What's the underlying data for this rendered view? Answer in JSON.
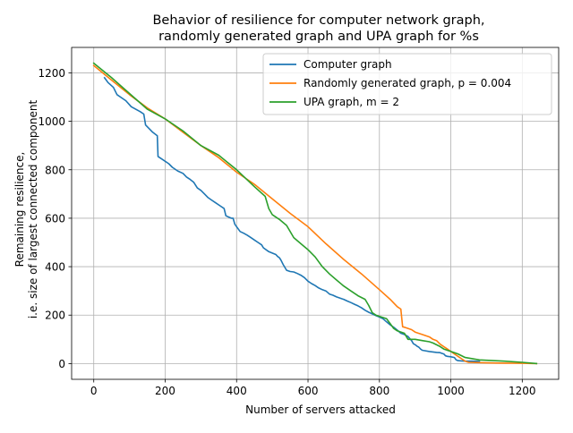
{
  "chart_data": {
    "type": "line",
    "title_lines": [
      "Behavior of resilience for computer network graph,",
      "randomly generated graph and UPA graph for %s"
    ],
    "xlabel": "Number of servers attacked",
    "ylabel_lines": [
      "Remaining resilience,",
      "i.e. size of largest connected component"
    ],
    "xlim": [
      -62,
      1302
    ],
    "ylim": [
      -65,
      1305
    ],
    "xticks": [
      0,
      200,
      400,
      600,
      800,
      1000,
      1200
    ],
    "yticks": [
      0,
      200,
      400,
      600,
      800,
      1000,
      1200
    ],
    "grid": true,
    "legend_position": "top-right",
    "series": [
      {
        "name": "Computer graph",
        "color": "#1f77b4",
        "points": [
          [
            30,
            1180
          ],
          [
            40,
            1160
          ],
          [
            55,
            1140
          ],
          [
            65,
            1110
          ],
          [
            75,
            1100
          ],
          [
            90,
            1085
          ],
          [
            105,
            1060
          ],
          [
            130,
            1040
          ],
          [
            140,
            1030
          ],
          [
            145,
            985
          ],
          [
            155,
            970
          ],
          [
            165,
            955
          ],
          [
            178,
            940
          ],
          [
            180,
            855
          ],
          [
            195,
            840
          ],
          [
            210,
            825
          ],
          [
            220,
            810
          ],
          [
            235,
            795
          ],
          [
            250,
            785
          ],
          [
            260,
            770
          ],
          [
            270,
            760
          ],
          [
            280,
            748
          ],
          [
            290,
            725
          ],
          [
            300,
            715
          ],
          [
            310,
            700
          ],
          [
            320,
            685
          ],
          [
            330,
            675
          ],
          [
            340,
            665
          ],
          [
            355,
            650
          ],
          [
            365,
            640
          ],
          [
            370,
            610
          ],
          [
            385,
            600
          ],
          [
            390,
            600
          ],
          [
            395,
            575
          ],
          [
            410,
            545
          ],
          [
            420,
            538
          ],
          [
            430,
            530
          ],
          [
            440,
            520
          ],
          [
            450,
            510
          ],
          [
            460,
            500
          ],
          [
            470,
            490
          ],
          [
            475,
            478
          ],
          [
            490,
            462
          ],
          [
            500,
            456
          ],
          [
            510,
            450
          ],
          [
            515,
            442
          ],
          [
            520,
            437
          ],
          [
            525,
            425
          ],
          [
            530,
            410
          ],
          [
            540,
            385
          ],
          [
            550,
            380
          ],
          [
            560,
            378
          ],
          [
            570,
            372
          ],
          [
            580,
            365
          ],
          [
            590,
            355
          ],
          [
            600,
            340
          ],
          [
            610,
            330
          ],
          [
            620,
            322
          ],
          [
            630,
            312
          ],
          [
            640,
            305
          ],
          [
            650,
            300
          ],
          [
            660,
            287
          ],
          [
            670,
            282
          ],
          [
            680,
            275
          ],
          [
            690,
            270
          ],
          [
            700,
            265
          ],
          [
            710,
            258
          ],
          [
            720,
            252
          ],
          [
            730,
            245
          ],
          [
            740,
            238
          ],
          [
            750,
            230
          ],
          [
            760,
            220
          ],
          [
            770,
            212
          ],
          [
            780,
            205
          ],
          [
            790,
            198
          ],
          [
            800,
            192
          ],
          [
            810,
            185
          ],
          [
            820,
            172
          ],
          [
            830,
            160
          ],
          [
            840,
            150
          ],
          [
            850,
            138
          ],
          [
            860,
            125
          ],
          [
            870,
            120
          ],
          [
            880,
            112
          ],
          [
            890,
            95
          ],
          [
            895,
            82
          ],
          [
            900,
            78
          ],
          [
            905,
            72
          ],
          [
            910,
            68
          ],
          [
            915,
            60
          ],
          [
            920,
            55
          ],
          [
            940,
            50
          ],
          [
            960,
            46
          ],
          [
            970,
            45
          ],
          [
            975,
            42
          ],
          [
            980,
            40
          ],
          [
            985,
            32
          ],
          [
            990,
            30
          ],
          [
            1000,
            28
          ],
          [
            1010,
            25
          ],
          [
            1015,
            15
          ],
          [
            1020,
            12
          ],
          [
            1030,
            11
          ],
          [
            1040,
            10
          ],
          [
            1060,
            10
          ],
          [
            1080,
            9
          ]
        ]
      },
      {
        "name": "Randomly generated graph, p = 0.004",
        "color": "#ff7f0e",
        "points": [
          [
            0,
            1230
          ],
          [
            50,
            1170
          ],
          [
            100,
            1110
          ],
          [
            150,
            1055
          ],
          [
            200,
            1010
          ],
          [
            250,
            955
          ],
          [
            300,
            900
          ],
          [
            350,
            850
          ],
          [
            400,
            790
          ],
          [
            450,
            740
          ],
          [
            500,
            680
          ],
          [
            550,
            620
          ],
          [
            600,
            565
          ],
          [
            650,
            495
          ],
          [
            700,
            430
          ],
          [
            750,
            370
          ],
          [
            800,
            305
          ],
          [
            830,
            265
          ],
          [
            850,
            235
          ],
          [
            860,
            225
          ],
          [
            865,
            152
          ],
          [
            870,
            150
          ],
          [
            890,
            140
          ],
          [
            900,
            130
          ],
          [
            920,
            120
          ],
          [
            940,
            110
          ],
          [
            950,
            100
          ],
          [
            960,
            95
          ],
          [
            970,
            80
          ],
          [
            980,
            70
          ],
          [
            990,
            60
          ],
          [
            1000,
            50
          ],
          [
            1010,
            40
          ],
          [
            1020,
            30
          ],
          [
            1030,
            20
          ],
          [
            1040,
            10
          ],
          [
            1050,
            5
          ],
          [
            1100,
            3
          ],
          [
            1150,
            2
          ],
          [
            1200,
            1
          ],
          [
            1240,
            0
          ]
        ]
      },
      {
        "name": "UPA graph, m = 2",
        "color": "#2ca02c",
        "points": [
          [
            0,
            1240
          ],
          [
            50,
            1180
          ],
          [
            100,
            1115
          ],
          [
            150,
            1050
          ],
          [
            200,
            1010
          ],
          [
            250,
            960
          ],
          [
            300,
            900
          ],
          [
            350,
            860
          ],
          [
            400,
            800
          ],
          [
            450,
            730
          ],
          [
            480,
            690
          ],
          [
            490,
            640
          ],
          [
            500,
            615
          ],
          [
            520,
            595
          ],
          [
            540,
            570
          ],
          [
            560,
            520
          ],
          [
            580,
            495
          ],
          [
            600,
            470
          ],
          [
            620,
            440
          ],
          [
            640,
            400
          ],
          [
            660,
            370
          ],
          [
            680,
            345
          ],
          [
            700,
            320
          ],
          [
            720,
            300
          ],
          [
            740,
            280
          ],
          [
            760,
            265
          ],
          [
            770,
            240
          ],
          [
            780,
            210
          ],
          [
            790,
            200
          ],
          [
            800,
            195
          ],
          [
            820,
            185
          ],
          [
            830,
            165
          ],
          [
            840,
            145
          ],
          [
            850,
            135
          ],
          [
            870,
            125
          ],
          [
            880,
            100
          ],
          [
            900,
            100
          ],
          [
            920,
            95
          ],
          [
            940,
            90
          ],
          [
            950,
            85
          ],
          [
            970,
            70
          ],
          [
            980,
            60
          ],
          [
            1000,
            50
          ],
          [
            1020,
            40
          ],
          [
            1040,
            25
          ],
          [
            1080,
            15
          ],
          [
            1150,
            10
          ],
          [
            1200,
            5
          ],
          [
            1240,
            0
          ]
        ]
      }
    ]
  }
}
